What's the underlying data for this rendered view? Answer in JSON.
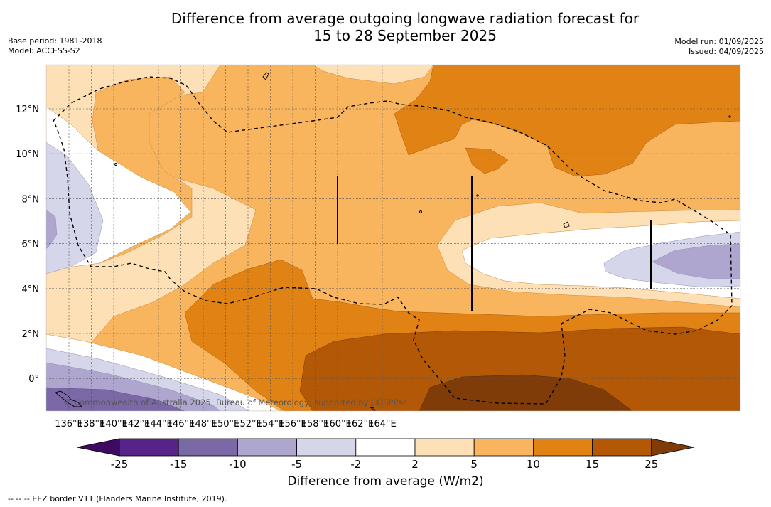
{
  "title_line1": "Difference from average outgoing longwave radiation forecast for",
  "title_line2": "15 to 28 September 2025",
  "meta_left": [
    "Base period: 1981-2018",
    "Model: ACCESS-S2"
  ],
  "meta_right": [
    "Model run: 01/09/2025",
    "Issued: 04/09/2025"
  ],
  "copyright": "© Commonwealth of Australia 2025, Bureau of Meteorology, supported by COSPPac",
  "lon_ticks": [
    "136°E",
    "138°E",
    "140°E",
    "142°E",
    "144°E",
    "146°E",
    "148°E",
    "150°E",
    "152°E",
    "154°E",
    "156°E",
    "158°E",
    "160°E",
    "162°E",
    "164°E"
  ],
  "lat_ticks": [
    "12°N",
    "10°N",
    "8°N",
    "6°N",
    "4°N",
    "2°N",
    "0°"
  ],
  "colorbar": {
    "ticks": [
      "-25",
      "-15",
      "-10",
      "-5",
      "-2",
      "2",
      "5",
      "10",
      "15",
      "25"
    ],
    "colors": [
      "#3f0a61",
      "#56238a",
      "#7b68a7",
      "#aea6cf",
      "#d6d6ea",
      "#ffffff",
      "#fee0b6",
      "#f9b45e",
      "#e08214",
      "#b35806",
      "#7f3b08"
    ],
    "label": "Difference from average (W/m2)"
  },
  "eez_legend": "--  --  -- EEZ border V11 (Flanders Marine Institute, 2019)."
}
